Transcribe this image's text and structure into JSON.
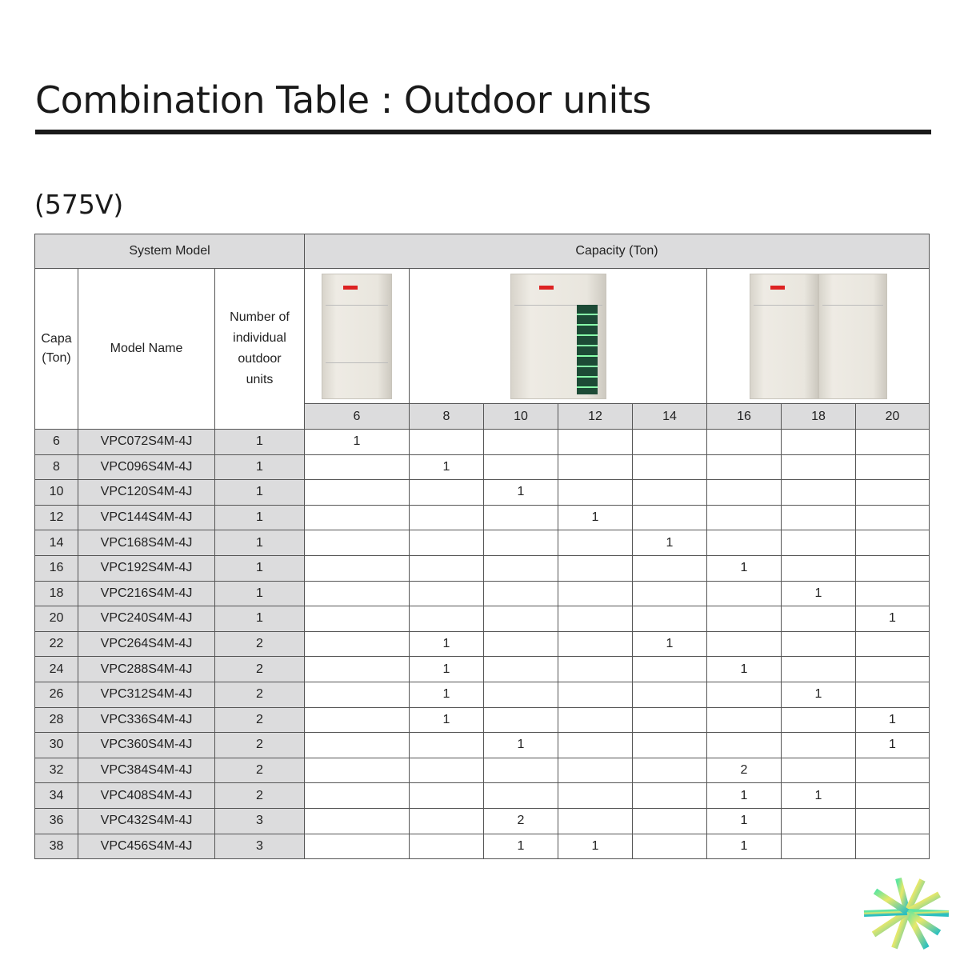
{
  "title": "Combination Table : Outdoor units",
  "subtitle": "(575V)",
  "table": {
    "system_model": "System Model",
    "capacity": "Capacity (Ton)",
    "col_capa": "Capa (Ton)",
    "col_model": "Model Name",
    "col_number": "Number of individual outdoor units",
    "tons": [
      "6",
      "8",
      "10",
      "12",
      "14",
      "16",
      "18",
      "20"
    ],
    "rows": [
      [
        "6",
        "VPC072S4M-4J",
        "1",
        [
          "1",
          "",
          "",
          "",
          "",
          "",
          "",
          ""
        ]
      ],
      [
        "8",
        "VPC096S4M-4J",
        "1",
        [
          "",
          "1",
          "",
          "",
          "",
          "",
          "",
          ""
        ]
      ],
      [
        "10",
        "VPC120S4M-4J",
        "1",
        [
          "",
          "",
          "1",
          "",
          "",
          "",
          "",
          ""
        ]
      ],
      [
        "12",
        "VPC144S4M-4J",
        "1",
        [
          "",
          "",
          "",
          "1",
          "",
          "",
          "",
          ""
        ]
      ],
      [
        "14",
        "VPC168S4M-4J",
        "1",
        [
          "",
          "",
          "",
          "",
          "1",
          "",
          "",
          ""
        ]
      ],
      [
        "16",
        "VPC192S4M-4J",
        "1",
        [
          "",
          "",
          "",
          "",
          "",
          "1",
          "",
          ""
        ]
      ],
      [
        "18",
        "VPC216S4M-4J",
        "1",
        [
          "",
          "",
          "",
          "",
          "",
          "",
          "1",
          ""
        ]
      ],
      [
        "20",
        "VPC240S4M-4J",
        "1",
        [
          "",
          "",
          "",
          "",
          "",
          "",
          "",
          "1"
        ]
      ],
      [
        "22",
        "VPC264S4M-4J",
        "2",
        [
          "",
          "1",
          "",
          "",
          "1",
          "",
          "",
          ""
        ]
      ],
      [
        "24",
        "VPC288S4M-4J",
        "2",
        [
          "",
          "1",
          "",
          "",
          "",
          "1",
          "",
          ""
        ]
      ],
      [
        "26",
        "VPC312S4M-4J",
        "2",
        [
          "",
          "1",
          "",
          "",
          "",
          "",
          "1",
          ""
        ]
      ],
      [
        "28",
        "VPC336S4M-4J",
        "2",
        [
          "",
          "1",
          "",
          "",
          "",
          "",
          "",
          "1"
        ]
      ],
      [
        "30",
        "VPC360S4M-4J",
        "2",
        [
          "",
          "",
          "1",
          "",
          "",
          "",
          "",
          "1"
        ]
      ],
      [
        "32",
        "VPC384S4M-4J",
        "2",
        [
          "",
          "",
          "",
          "",
          "",
          "2",
          "",
          ""
        ]
      ],
      [
        "34",
        "VPC408S4M-4J",
        "2",
        [
          "",
          "",
          "",
          "",
          "",
          "1",
          "1",
          ""
        ]
      ],
      [
        "36",
        "VPC432S4M-4J",
        "3",
        [
          "",
          "",
          "2",
          "",
          "",
          "1",
          "",
          ""
        ]
      ],
      [
        "38",
        "VPC456S4M-4J",
        "3",
        [
          "",
          "",
          "1",
          "1",
          "",
          "1",
          "",
          ""
        ]
      ]
    ]
  },
  "colors": {
    "header_bg": "#dcdcdd",
    "coil": "#1d4a36",
    "logo_gradient": [
      "#5ee6a0",
      "#e8e86a",
      "#2bbfc0"
    ]
  }
}
